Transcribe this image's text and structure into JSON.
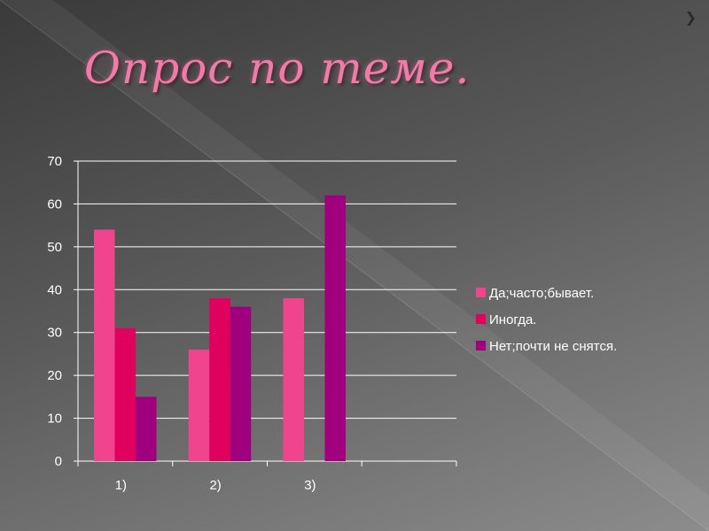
{
  "slide": {
    "title": "Опрос по теме.",
    "nav_icon": "chevron-right-icon"
  },
  "colors": {
    "series_1": "#f0448f",
    "series_2": "#e0005e",
    "series_3": "#a0007e",
    "axis": "#ffffff",
    "title": "#f07ba8"
  },
  "chart_data": {
    "type": "bar",
    "categories": [
      "1)",
      "2)",
      "3)",
      ""
    ],
    "series": [
      {
        "name": "Да;часто;бывает.",
        "values": [
          54,
          26,
          38,
          null
        ]
      },
      {
        "name": "Иногда.",
        "values": [
          31,
          38,
          0,
          null
        ]
      },
      {
        "name": "Нет;почти не снятся.",
        "values": [
          15,
          36,
          62,
          null
        ]
      }
    ],
    "ylim": [
      0,
      70
    ],
    "yticks": [
      0,
      10,
      20,
      30,
      40,
      50,
      60,
      70
    ],
    "grid": true,
    "legend_position": "right",
    "title": "",
    "xlabel": "",
    "ylabel": ""
  }
}
